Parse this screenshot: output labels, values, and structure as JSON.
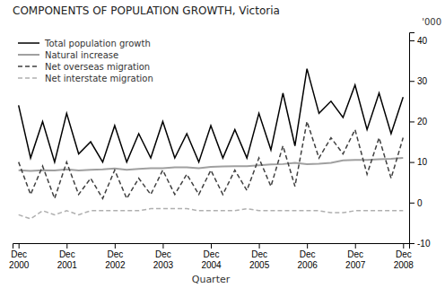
{
  "chart_data": {
    "type": "line",
    "title": "COMPONENTS OF POPULATION GROWTH, Victoria",
    "xlabel": "Quarter",
    "ylabel": "'000",
    "categories": [
      "Dec\n2000",
      null,
      null,
      null,
      "Dec\n2001",
      null,
      null,
      null,
      "Dec\n2002",
      null,
      null,
      null,
      "Dec\n2003",
      null,
      null,
      null,
      "Dec\n2004",
      null,
      null,
      null,
      "Dec\n2005",
      null,
      null,
      null,
      "Dec\n2006",
      null,
      null,
      null,
      "Dec\n2007",
      null,
      null,
      null,
      "Dec\n2008"
    ],
    "series": [
      {
        "name": "Total population growth",
        "color": "#000000",
        "line_style": "solid",
        "values": [
          24,
          11,
          20,
          10,
          22,
          12,
          15,
          10,
          19,
          10,
          17,
          11,
          20,
          11,
          17,
          10,
          19,
          11,
          18,
          11,
          22,
          13,
          27,
          14,
          33,
          22,
          25,
          21,
          29,
          18,
          27,
          17,
          26
        ]
      },
      {
        "name": "Natural increase",
        "color": "#a0a0a0",
        "line_style": "solid",
        "values": [
          8.0,
          7.8,
          8.0,
          7.9,
          8.2,
          7.9,
          8.1,
          8.2,
          8.4,
          8.1,
          8.3,
          8.5,
          8.5,
          8.7,
          8.7,
          8.5,
          8.8,
          8.9,
          9.0,
          9.0,
          9.2,
          9.4,
          9.5,
          9.8,
          9.5,
          9.6,
          9.8,
          10.4,
          10.5,
          10.5,
          10.7,
          10.8,
          11.0
        ]
      },
      {
        "name": "Net overseas migration",
        "color": "#404040",
        "line_style": "dashed",
        "values": [
          10,
          2,
          9,
          1,
          10,
          2,
          6,
          1,
          8,
          1,
          6,
          2,
          8,
          2,
          7,
          2,
          8,
          2,
          8,
          3,
          11,
          4,
          14,
          4,
          20,
          11,
          16,
          12,
          18,
          7,
          16,
          6,
          16
        ]
      },
      {
        "name": "Net interstate migration",
        "color": "#b0b0b0",
        "line_style": "dashed",
        "values": [
          -3,
          -4,
          -2,
          -3,
          -2,
          -3,
          -2,
          -2,
          -2,
          -2,
          -2,
          -1.5,
          -1.5,
          -1.5,
          -1.5,
          -2,
          -2,
          -2,
          -2,
          -1.5,
          -2,
          -2,
          -2,
          -2,
          -2,
          -2,
          -2.5,
          -2.5,
          -2,
          -2,
          -2,
          -2,
          -2
        ]
      }
    ],
    "ylim": [
      -10,
      42
    ],
    "yticks": [
      -10,
      0,
      10,
      20,
      30,
      40
    ],
    "grid": false,
    "legend": "upper left"
  }
}
